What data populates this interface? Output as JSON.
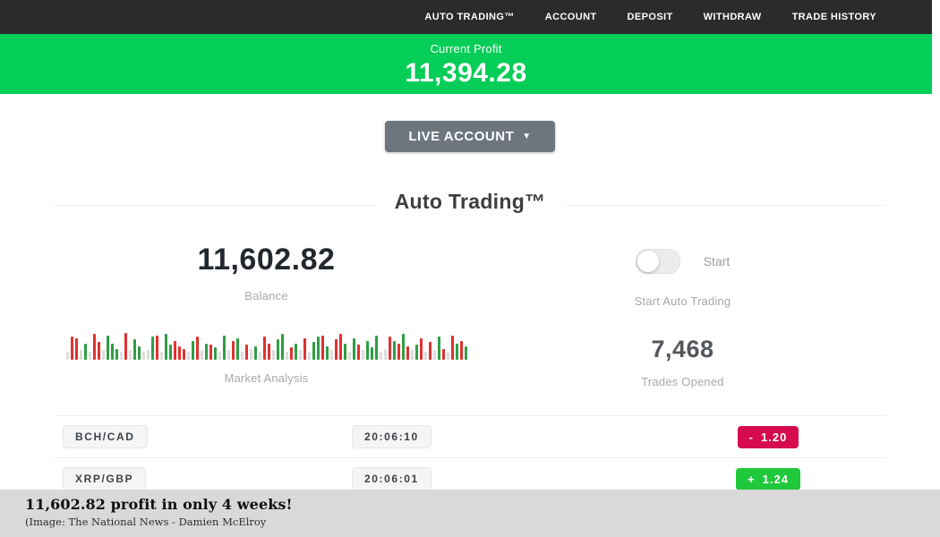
{
  "nav": {
    "items": [
      "AUTO TRADING™",
      "ACCOUNT",
      "DEPOSIT",
      "WITHDRAW",
      "TRADE HISTORY"
    ]
  },
  "profit_banner": {
    "label": "Current Profit",
    "value": "11,394.28"
  },
  "account_selector": {
    "label": "LIVE ACCOUNT",
    "caret": "▼"
  },
  "section": {
    "title": "Auto Trading™"
  },
  "balance": {
    "value": "11,602.82",
    "label": "Balance"
  },
  "auto_toggle": {
    "enabled": false,
    "state_label": "Start",
    "caption": "Start Auto Trading"
  },
  "market": {
    "label": "Market Analysis"
  },
  "trades_opened": {
    "value": "7,468",
    "label": "Trades Opened"
  },
  "trade_rows": [
    {
      "pair": "BCH/CAD",
      "time": "20:06:10",
      "sign": "-",
      "amount": "1.20",
      "direction": "loss"
    },
    {
      "pair": "XRP/GBP",
      "time": "20:06:01",
      "sign": "+",
      "amount": "1.24",
      "direction": "win"
    }
  ],
  "caption": {
    "headline": "11,602.82 profit in only 4 weeks!",
    "credit": "(Image:  The National News - Damien McElroy"
  },
  "colors": {
    "nav_dark": "#2b2b2b",
    "banner_green": "#05ce58",
    "win": "#20c83c",
    "loss": "#d60b4e",
    "candle_red": "#e03131",
    "candle_green": "#2f9e44",
    "candle_neutral": "#dddddd"
  },
  "chart_data": {
    "type": "bar",
    "title": "Market Analysis",
    "note": "decorative ticker strip; color r=red g=green n=neutral, value = relative height %",
    "bars": [
      [
        "n",
        30
      ],
      [
        "r",
        85
      ],
      [
        "r",
        80
      ],
      [
        "n",
        35
      ],
      [
        "g",
        60
      ],
      [
        "n",
        30
      ],
      [
        "r",
        95
      ],
      [
        "r",
        65
      ],
      [
        "n",
        35
      ],
      [
        "g",
        90
      ],
      [
        "g",
        60
      ],
      [
        "g",
        40
      ],
      [
        "n",
        30
      ],
      [
        "r",
        100
      ],
      [
        "n",
        35
      ],
      [
        "g",
        75
      ],
      [
        "g",
        50
      ],
      [
        "n",
        30
      ],
      [
        "n",
        35
      ],
      [
        "g",
        85
      ],
      [
        "r",
        90
      ],
      [
        "n",
        30
      ],
      [
        "g",
        95
      ],
      [
        "g",
        55
      ],
      [
        "r",
        70
      ],
      [
        "r",
        50
      ],
      [
        "r",
        40
      ],
      [
        "n",
        30
      ],
      [
        "g",
        70
      ],
      [
        "r",
        85
      ],
      [
        "n",
        35
      ],
      [
        "g",
        60
      ],
      [
        "r",
        55
      ],
      [
        "g",
        45
      ],
      [
        "n",
        30
      ],
      [
        "g",
        90
      ],
      [
        "n",
        35
      ],
      [
        "r",
        70
      ],
      [
        "g",
        80
      ],
      [
        "n",
        30
      ],
      [
        "r",
        55
      ],
      [
        "n",
        40
      ],
      [
        "g",
        50
      ],
      [
        "n",
        30
      ],
      [
        "r",
        85
      ],
      [
        "r",
        60
      ],
      [
        "n",
        35
      ],
      [
        "g",
        75
      ],
      [
        "g",
        95
      ],
      [
        "n",
        30
      ],
      [
        "r",
        45
      ],
      [
        "g",
        60
      ],
      [
        "n",
        35
      ],
      [
        "r",
        80
      ],
      [
        "n",
        30
      ],
      [
        "g",
        65
      ],
      [
        "g",
        85
      ],
      [
        "r",
        90
      ],
      [
        "g",
        50
      ],
      [
        "n",
        35
      ],
      [
        "r",
        75
      ],
      [
        "r",
        95
      ],
      [
        "g",
        60
      ],
      [
        "n",
        30
      ],
      [
        "g",
        80
      ],
      [
        "r",
        55
      ],
      [
        "n",
        35
      ],
      [
        "g",
        70
      ],
      [
        "g",
        45
      ],
      [
        "g",
        90
      ],
      [
        "n",
        30
      ],
      [
        "n",
        40
      ],
      [
        "r",
        85
      ],
      [
        "g",
        70
      ],
      [
        "r",
        60
      ],
      [
        "g",
        95
      ],
      [
        "r",
        50
      ],
      [
        "n",
        35
      ],
      [
        "g",
        55
      ],
      [
        "r",
        80
      ],
      [
        "n",
        30
      ],
      [
        "r",
        65
      ],
      [
        "n",
        35
      ],
      [
        "g",
        85
      ],
      [
        "r",
        40
      ],
      [
        "n",
        30
      ],
      [
        "r",
        90
      ],
      [
        "g",
        60
      ],
      [
        "r",
        70
      ],
      [
        "g",
        50
      ]
    ]
  }
}
